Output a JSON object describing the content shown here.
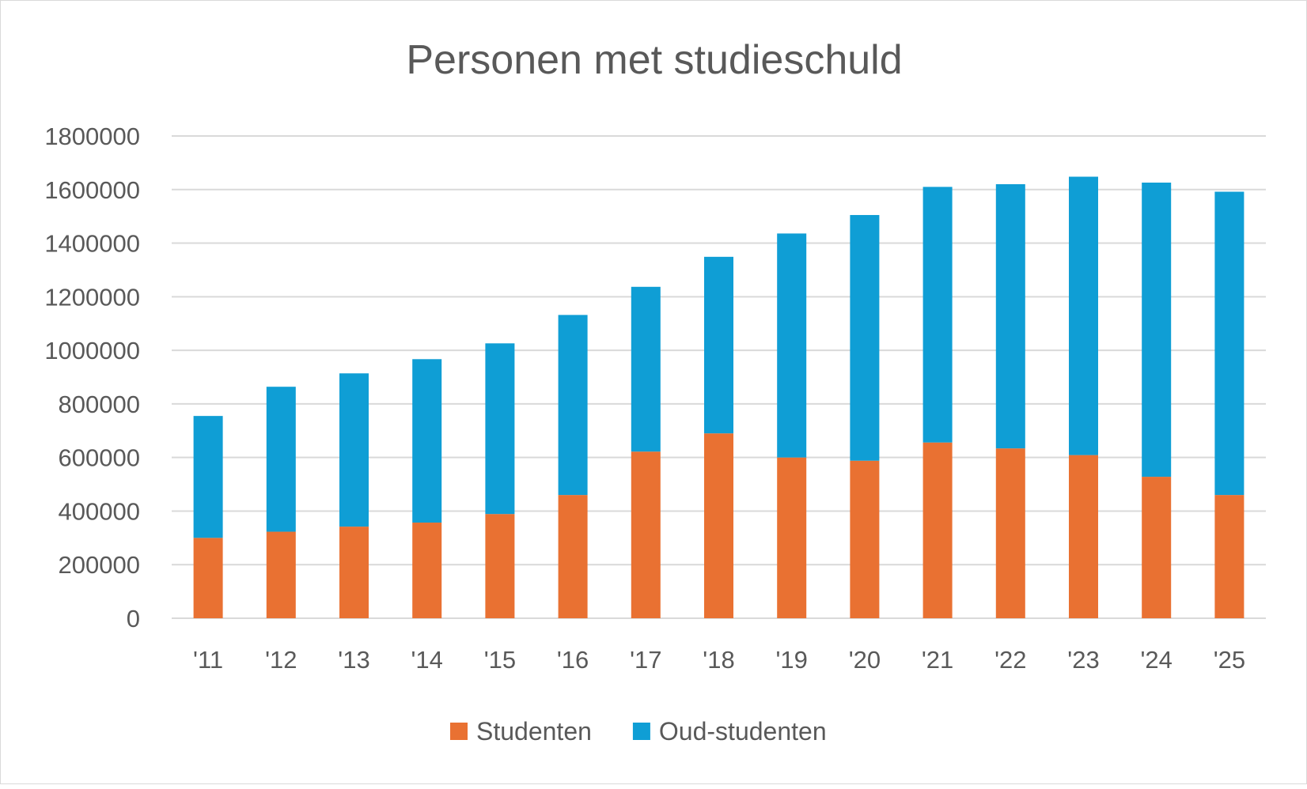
{
  "chart_data": {
    "type": "bar",
    "stacked": true,
    "title": "Personen met studieschuld",
    "xlabel": "",
    "ylabel": "",
    "ylim": [
      0,
      1800000
    ],
    "yticks": [
      "0",
      "200000",
      "400000",
      "600000",
      "800000",
      "1000000",
      "1200000",
      "1400000",
      "1600000",
      "1800000"
    ],
    "grid": true,
    "legend": "bottom",
    "categories": [
      "'11",
      "'12",
      "'13",
      "'14",
      "'15",
      "'16",
      "'17",
      "'18",
      "'19",
      "'20",
      "'21",
      "'22",
      "'23",
      "'24",
      "'25"
    ],
    "series": [
      {
        "name": "Studenten",
        "color": "#E97132",
        "values": [
          300000,
          323000,
          342000,
          357000,
          389000,
          460000,
          622000,
          690000,
          600000,
          588000,
          656000,
          634000,
          609000,
          528000,
          460000
        ]
      },
      {
        "name": "Oud-studenten",
        "color": "#0F9ED5",
        "values": [
          455000,
          541000,
          572000,
          610000,
          637000,
          672000,
          615000,
          659000,
          836000,
          917000,
          954000,
          986000,
          1039000,
          1098000,
          1132000
        ]
      }
    ]
  }
}
